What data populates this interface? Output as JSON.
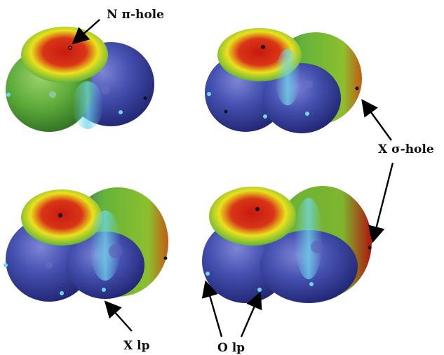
{
  "labels": {
    "n_pi_hole": "N π-hole",
    "x_sigma_hole": "X σ-hole",
    "x_lp": "X lp",
    "o_lp": "O lp"
  },
  "colors": {
    "red": "#c81a0e",
    "yellow": "#e8e21c",
    "green": "#63b33a",
    "cyan": "#6fd6ea",
    "blue": "#3f4aa6",
    "dark_blue": "#262a7a",
    "arrow": "#000000"
  },
  "panels": [
    {
      "id": "top-left",
      "description_none": true
    },
    {
      "id": "top-right"
    },
    {
      "id": "bottom-left"
    },
    {
      "id": "bottom-right"
    }
  ]
}
